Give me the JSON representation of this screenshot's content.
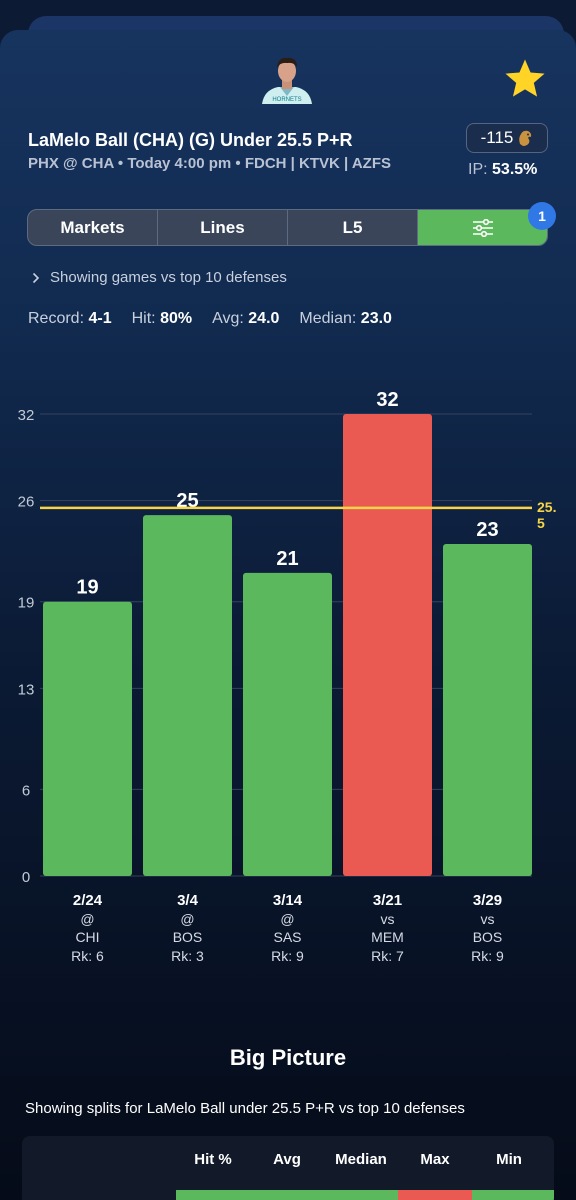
{
  "header": {
    "title": "LaMelo Ball (CHA) (G) Under 25.5 P+R",
    "subtitle": "PHX @ CHA • Today 4:00 pm • FDCH | KTVK | AZFS",
    "odds": "-115",
    "ip_label": "IP:",
    "ip_value": "53.5%",
    "favorite_icon": "star-icon",
    "sportsbook_icon": "lion-icon"
  },
  "tabs": [
    {
      "label": "Markets"
    },
    {
      "label": "Lines"
    },
    {
      "label": "L5"
    },
    {
      "label": "",
      "icon": "sliders-icon",
      "active": true
    }
  ],
  "filter_badge": "1",
  "filter_note": "Showing games vs top 10 defenses",
  "stats": {
    "record_label": "Record:",
    "record_value": "4-1",
    "hit_label": "Hit:",
    "hit_value": "80%",
    "avg_label": "Avg:",
    "avg_value": "24.0",
    "median_label": "Median:",
    "median_value": "23.0"
  },
  "chart_data": {
    "type": "bar",
    "y_ticks": [
      "0",
      "6",
      "13",
      "19",
      "26",
      "32"
    ],
    "ylim": [
      0,
      32
    ],
    "line_value": 25.5,
    "line_label_1": "25.",
    "line_label_2": "5",
    "bars": [
      {
        "date": "2/24",
        "loc": "@",
        "opp": "CHI",
        "rank": "Rk: 6",
        "value": 19,
        "result": "hit"
      },
      {
        "date": "3/4",
        "loc": "@",
        "opp": "BOS",
        "rank": "Rk: 3",
        "value": 25,
        "result": "hit"
      },
      {
        "date": "3/14",
        "loc": "@",
        "opp": "SAS",
        "rank": "Rk: 9",
        "value": 21,
        "result": "hit"
      },
      {
        "date": "3/21",
        "loc": "vs",
        "opp": "MEM",
        "rank": "Rk: 7",
        "value": 32,
        "result": "miss"
      },
      {
        "date": "3/29",
        "loc": "vs",
        "opp": "BOS",
        "rank": "Rk: 9",
        "value": 23,
        "result": "hit"
      }
    ],
    "colors": {
      "hit": "#5cb85c",
      "miss": "#ea5a52",
      "line": "#f5d547"
    }
  },
  "big_picture": {
    "title": "Big Picture",
    "description": "Showing splits for LaMelo Ball under 25.5 P+R vs top 10 defenses",
    "columns": [
      "Hit %",
      "Avg",
      "Median",
      "Max",
      "Min"
    ]
  }
}
